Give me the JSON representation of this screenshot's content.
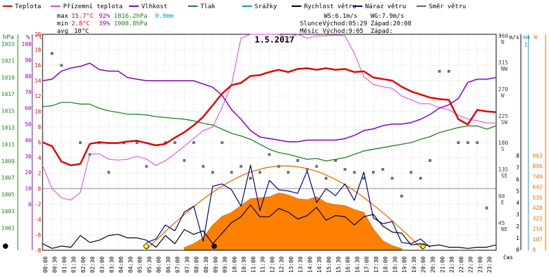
{
  "chart_data": {
    "type": "line",
    "title": "1.5.2017",
    "x_tick_labels": [
      "00:00",
      "00:30",
      "01:00",
      "01:30",
      "02:00",
      "02:30",
      "03:00",
      "03:30",
      "04:00",
      "04:30",
      "05:00",
      "05:30",
      "06:00",
      "06:30",
      "07:00",
      "07:30",
      "08:00",
      "08:30",
      "09:00",
      "09:30",
      "10:00",
      "10:30",
      "11:00",
      "11:30",
      "12:00",
      "12:30",
      "13:00",
      "13:30",
      "14:00",
      "14:30",
      "15:00",
      "15:30",
      "16:00",
      "16:30",
      "17:00",
      "17:30",
      "18:00",
      "18:30",
      "19:00",
      "19:30",
      "20:00",
      "20:30",
      "21:00",
      "21:30",
      "22:00",
      "22:30",
      "23:00",
      "23:30"
    ],
    "x_axis_label": "čas",
    "legend": [
      {
        "name": "Teplota",
        "color": "#e00000"
      },
      {
        "name": "Přízemní teplota",
        "color": "#e040e0"
      },
      {
        "name": "Vlhkost",
        "color": "#8000c0"
      },
      {
        "name": "Tlak",
        "color": "#208020"
      },
      {
        "name": "Srážky",
        "color": "#00a0c0"
      },
      {
        "name": "Rychlost větru",
        "color": "#000000"
      },
      {
        "name": "Náraz větru",
        "color": "#000080"
      },
      {
        "name": "Směr větru",
        "color": "#606060"
      }
    ],
    "stats": {
      "max_label": "max",
      "max_temp": "15.7°C",
      "max_hum": "92%",
      "max_press": "1016.2hPa",
      "rain": "0.0mm",
      "min_label": "min",
      "min_temp": "2.8°C",
      "min_hum": "39%",
      "min_press": "1008.8hPa",
      "avg_label": "avg",
      "avg_temp": "10°C"
    },
    "wind_info": {
      "ws": "WS:6.1m/s",
      "wg": "WG:7.9m/s"
    },
    "sun": {
      "label": "Slunce",
      "rise": "Východ:05:29",
      "set": "Západ:20:08"
    },
    "moon": {
      "label": "Měsíc",
      "rise": "Východ:9:05",
      "set": "Západ:"
    },
    "axes": {
      "hpa": {
        "label": "hPa",
        "ticks": [
          "1023",
          "1021",
          "1019",
          "1017",
          "1015",
          "1013",
          "1011",
          "1009",
          "1007",
          "1005",
          "1003",
          "1001"
        ],
        "color": "#208020"
      },
      "percent": {
        "label": "%",
        "ticks": [
          "100",
          "90",
          "80",
          "70",
          "60",
          "50",
          "40",
          "30",
          "20",
          "10",
          "0"
        ],
        "color": "#8000c0"
      },
      "celsius": {
        "label": "°C",
        "ticks": [
          "20",
          "18",
          "16",
          "14",
          "12",
          "10",
          "8",
          "6",
          "4",
          "2",
          "0",
          "-2",
          "-4",
          "-6",
          "-8"
        ],
        "color": "#e00000"
      },
      "degrees": {
        "label": "°",
        "ticks": [
          "360",
          "315",
          "270",
          "225",
          "180",
          "135",
          "90",
          "45"
        ],
        "names": [
          "N",
          "NW",
          "W",
          "SW",
          "S",
          "SE",
          "E",
          "NE"
        ],
        "color": "#404040"
      },
      "ms": {
        "label": "m/s",
        "ticks": [
          "8",
          "7",
          "6",
          "5",
          "4",
          "3",
          "2",
          "1",
          "0"
        ],
        "color": "#000000"
      },
      "mm": {
        "label": "mm",
        "ticks": [
          "1"
        ],
        "color": "#00a0c0"
      },
      "watt": {
        "label": "W",
        "ticks": [
          "963",
          "856",
          "749",
          "642",
          "535",
          "428",
          "321",
          "214",
          "107",
          "0"
        ],
        "color": "#e07000"
      }
    },
    "series": [
      {
        "name": "Teplota",
        "unit": "°C",
        "x_hours": [
          0,
          0.5,
          1,
          1.5,
          2,
          2.5,
          3,
          3.5,
          4,
          4.5,
          5,
          5.5,
          6,
          6.5,
          7,
          7.5,
          8,
          8.5,
          9,
          9.5,
          10,
          10.5,
          11,
          11.5,
          12,
          12.5,
          13,
          13.5,
          14,
          14.5,
          15,
          15.5,
          16,
          16.5,
          17,
          17.5,
          18,
          18.5,
          19,
          19.5,
          20,
          20.5,
          21,
          21.5,
          22,
          22.5,
          23,
          23.5,
          24
        ],
        "values": [
          6,
          5.5,
          3.5,
          3,
          3.2,
          5.8,
          6,
          5.9,
          5.9,
          6.1,
          6.2,
          5.9,
          5.6,
          5.8,
          6.6,
          7.3,
          8.2,
          9.3,
          10.8,
          12.3,
          13.4,
          13.7,
          14.6,
          14.7,
          15.1,
          15.4,
          15.1,
          15.5,
          15.6,
          15.4,
          15.6,
          15.4,
          15.5,
          15.1,
          15.2,
          14.4,
          14.2,
          14.0,
          13.2,
          12.6,
          12.2,
          11.8,
          11.6,
          11.5,
          9.0,
          8.3,
          10.2,
          10.0,
          9.9
        ]
      },
      {
        "name": "Přízemní teplota",
        "unit": "°C",
        "x_hours": [
          0,
          0.5,
          1,
          1.5,
          2,
          2.5,
          3,
          3.5,
          4,
          4.5,
          5,
          5.5,
          6,
          6.5,
          7,
          7.5,
          8,
          8.5,
          9,
          9.5,
          10,
          10.5,
          11,
          11.5,
          12,
          12.5,
          13,
          13.5,
          14,
          14.5,
          15,
          15.5,
          16,
          16.5,
          17,
          17.5,
          18,
          18.5,
          19,
          19.5,
          20,
          20.5,
          21,
          21.5,
          22,
          22.5,
          23,
          23.5,
          24
        ],
        "values": [
          3,
          0,
          -1.2,
          -1.5,
          -0.5,
          4.5,
          4.5,
          3.8,
          3.7,
          3.8,
          4.2,
          3.8,
          3,
          3.6,
          4.5,
          5.5,
          6.5,
          7.5,
          8,
          10.5,
          13.5,
          19.5,
          20,
          20,
          20,
          20,
          19.5,
          20,
          19.5,
          19.8,
          19.8,
          19.9,
          19.8,
          17.5,
          14.5,
          13.5,
          13.2,
          13.0,
          12.0,
          11.5,
          11.0,
          11.0,
          10.5,
          10.2,
          9.5,
          9.0,
          8.8,
          8.5,
          8.5
        ]
      },
      {
        "name": "Vlhkost",
        "unit": "%",
        "x_hours": [
          0,
          0.5,
          1,
          1.5,
          2,
          2.5,
          3,
          3.5,
          4,
          4.5,
          5,
          5.5,
          6,
          6.5,
          7,
          7.5,
          8,
          8.5,
          9,
          9.5,
          10,
          10.5,
          11,
          11.5,
          12,
          12.5,
          13,
          13.5,
          14,
          14.5,
          15,
          15.5,
          16,
          16.5,
          17,
          17.5,
          18,
          18.5,
          19,
          19.5,
          20,
          20.5,
          21,
          21.5,
          22,
          22.5,
          23,
          23.5,
          24
        ],
        "values": [
          77,
          78,
          83,
          85,
          86,
          88,
          84,
          83,
          83,
          79,
          78,
          77,
          77,
          77,
          77,
          77,
          77,
          75,
          73,
          68,
          59,
          53,
          46,
          42,
          41,
          40,
          39,
          39,
          40,
          40,
          40,
          40,
          41,
          43,
          46,
          47,
          49,
          50,
          50,
          51,
          53,
          56,
          60,
          62,
          66,
          76,
          78,
          78,
          79
        ]
      },
      {
        "name": "Tlak",
        "unit": "hPa",
        "x_hours": [
          0,
          0.5,
          1,
          1.5,
          2,
          2.5,
          3,
          3.5,
          4,
          4.5,
          5,
          5.5,
          6,
          6.5,
          7,
          7.5,
          8,
          8.5,
          9,
          9.5,
          10,
          10.5,
          11,
          11.5,
          12,
          12.5,
          13,
          13.5,
          14,
          14.5,
          15,
          15.5,
          16,
          16.5,
          17,
          17.5,
          18,
          18.5,
          19,
          19.5,
          20,
          20.5,
          21,
          21.5,
          22,
          22.5,
          23,
          23.5,
          24
        ],
        "values": [
          1015.5,
          1015.6,
          1016.0,
          1016.0,
          1015.8,
          1015.8,
          1015.3,
          1015.0,
          1014.8,
          1014.6,
          1014.6,
          1014.5,
          1014.3,
          1014.2,
          1014.1,
          1014.0,
          1013.8,
          1013.5,
          1013.3,
          1012.8,
          1012.3,
          1012.0,
          1011.6,
          1011.0,
          1010.4,
          1010.0,
          1009.8,
          1009.5,
          1009.2,
          1009.3,
          1009.0,
          1009.2,
          1009.4,
          1009.8,
          1010.2,
          1010.4,
          1010.6,
          1010.8,
          1011.0,
          1011.2,
          1011.6,
          1011.9,
          1012.4,
          1012.7,
          1013.0,
          1013.2,
          1013.2,
          1012.8,
          1013.2
        ]
      },
      {
        "name": "Rychlost větru",
        "unit": "m/s",
        "x_hours": [
          0,
          0.5,
          1,
          1.5,
          2,
          2.5,
          3,
          3.5,
          4,
          4.5,
          5,
          5.5,
          6,
          6.5,
          7,
          7.5,
          8,
          8.5,
          9,
          9.5,
          10,
          10.5,
          11,
          11.5,
          12,
          12.5,
          13,
          13.5,
          14,
          14.5,
          15,
          15.5,
          16,
          16.5,
          17,
          17.5,
          18,
          18.5,
          19,
          19.5,
          20,
          20.5,
          21,
          21.5,
          22,
          22.5,
          23,
          23.5,
          24
        ],
        "values": [
          0.5,
          0.1,
          0.3,
          0.2,
          1.2,
          0.6,
          0.8,
          1.2,
          1.3,
          1.0,
          1.0,
          0.8,
          0.2,
          1.2,
          0.5,
          1.7,
          1.3,
          1.6,
          0.5,
          1.4,
          2.3,
          2.8,
          3.8,
          2.8,
          2.8,
          3.5,
          3.2,
          2.6,
          2.9,
          3.6,
          2.5,
          2.9,
          2.8,
          2.1,
          2.8,
          3.0,
          2.0,
          1.5,
          1.4,
          0.4,
          0.5,
          0.3,
          0.4,
          0.2,
          0.2,
          0.1,
          0.2,
          0.2,
          0.4
        ]
      },
      {
        "name": "Náraz větru",
        "unit": "m/s",
        "x_hours": [
          5.5,
          6,
          6.5,
          7,
          7.5,
          8,
          8.5,
          9,
          9.5,
          10,
          10.5,
          11,
          11.5,
          12,
          12.5,
          13,
          13.5,
          14,
          14.5,
          15,
          15.5,
          16,
          16.5,
          17,
          17.5,
          18,
          18.5,
          19,
          19.5,
          20,
          20.5
        ],
        "values": [
          0.6,
          0.9,
          2.1,
          1.6,
          3.2,
          3.7,
          0.7,
          5.4,
          5.6,
          5.1,
          3.7,
          7.2,
          3.3,
          5.9,
          5.1,
          5.0,
          4.8,
          6.7,
          4.0,
          5.2,
          4.6,
          5.6,
          4.2,
          6.6,
          2.7,
          2.2,
          2.4,
          0.6,
          0.5,
          0.9,
          0.2
        ]
      },
      {
        "name": "Slunce",
        "unit": "W",
        "x_hours": [
          7.5,
          8,
          8.5,
          9,
          9.5,
          10,
          10.5,
          11,
          11.5,
          12,
          12.5,
          13,
          13.5,
          14,
          14.5,
          15,
          15.5,
          16,
          16.5,
          17,
          17.5,
          18,
          18.5,
          19
        ],
        "values": [
          20,
          60,
          120,
          250,
          340,
          380,
          450,
          520,
          530,
          540,
          580,
          560,
          520,
          510,
          540,
          480,
          460,
          450,
          410,
          380,
          210,
          90,
          40,
          10
        ]
      },
      {
        "name": "Směr větru",
        "unit": "°",
        "x_hours": [
          0.5,
          1,
          2,
          2.5,
          3,
          3.5,
          4.3,
          5,
          5.5,
          6.5,
          7,
          7.5,
          8,
          8.5,
          9,
          9.5,
          10,
          10.5,
          11,
          11.5,
          12,
          12.5,
          13,
          13.5,
          14,
          14.5,
          15,
          15.5,
          16,
          16.5,
          17,
          17.5,
          18,
          18.5,
          19,
          19.5,
          20,
          20.5,
          21,
          21.5,
          22,
          22.5,
          23,
          23.5
        ],
        "values": [
          330,
          310,
          180,
          160,
          180,
          130,
          180,
          180,
          140,
          180,
          180,
          150,
          180,
          140,
          130,
          180,
          130,
          140,
          120,
          130,
          160,
          140,
          130,
          150,
          135,
          140,
          120,
          150,
          135,
          130,
          120,
          130,
          135,
          120,
          90,
          130,
          120,
          150,
          300,
          300,
          180,
          180,
          180,
          70
        ]
      }
    ],
    "grid": true
  }
}
